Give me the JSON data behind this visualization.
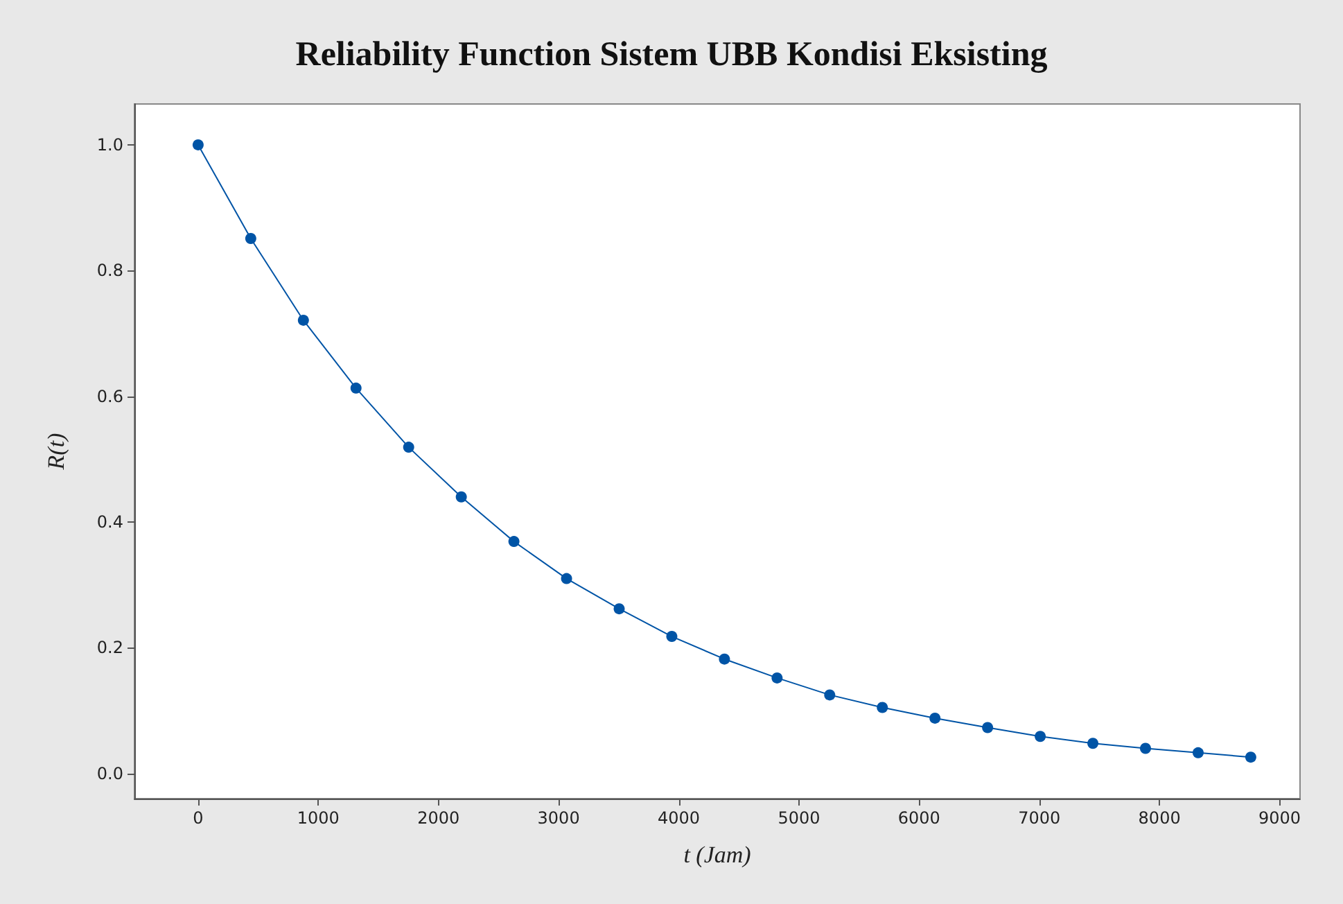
{
  "chart_data": {
    "type": "line",
    "title": "Reliability Function Sistem UBB Kondisi Eksisting",
    "xlabel": "t (Jam)",
    "ylabel": "R(t)",
    "x": [
      0,
      438,
      876,
      1314,
      1752,
      2190,
      2628,
      3066,
      3504,
      3942,
      4380,
      4818,
      5256,
      5694,
      6132,
      6570,
      7008,
      7446,
      7884,
      8322,
      8760
    ],
    "series": [
      {
        "color": "#0054a6",
        "values": [
          1.0,
          0.851,
          0.721,
          0.613,
          0.519,
          0.44,
          0.369,
          0.31,
          0.262,
          0.218,
          0.182,
          0.152,
          0.125,
          0.105,
          0.088,
          0.073,
          0.059,
          0.048,
          0.04,
          0.033,
          0.026
        ]
      }
    ],
    "xlim": [
      -530,
      9170
    ],
    "ylim": [
      -0.04,
      1.065
    ],
    "xticks": [
      0,
      1000,
      2000,
      3000,
      4000,
      5000,
      6000,
      7000,
      8000,
      9000
    ],
    "yticks": [
      {
        "value": 0,
        "label": "0.0"
      },
      {
        "value": 0.2,
        "label": "0.2"
      },
      {
        "value": 0.4,
        "label": "0.4"
      },
      {
        "value": 0.6,
        "label": "0.6"
      },
      {
        "value": 0.8,
        "label": "0.8"
      },
      {
        "value": 1,
        "label": "1.0"
      }
    ],
    "grid": false,
    "marker": "circle",
    "line_style": "solid"
  }
}
